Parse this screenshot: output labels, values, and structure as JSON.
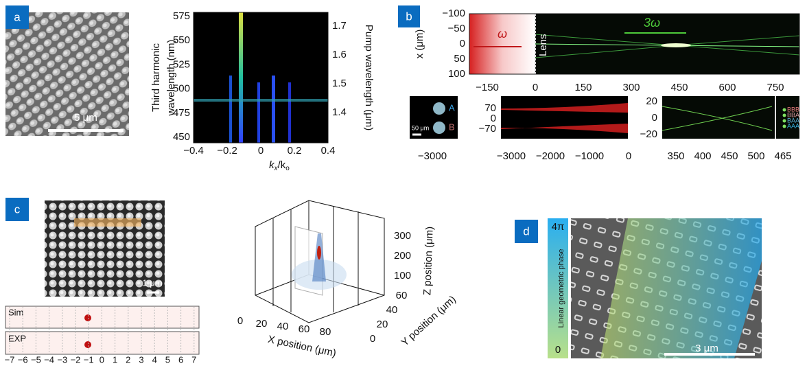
{
  "panel_a": {
    "label": "a",
    "scale_bar": "5 μm",
    "spectrum": {
      "y_label": [
        "Third harmonic",
        "wavelength (nm)"
      ],
      "y2_label": "Pump wavelength (μm)",
      "x_label": [
        "k",
        "x",
        "/k",
        "o"
      ],
      "yticks": [
        "575",
        "550",
        "525",
        "500",
        "475",
        "450"
      ],
      "y2ticks": [
        "1.7",
        "1.6",
        "1.5",
        "1.4"
      ],
      "xticks": [
        "−0.4",
        "−0.2",
        "0",
        "0.2",
        "0.4"
      ]
    }
  },
  "panel_b": {
    "label": "b",
    "y_label": "x (μm)",
    "omega": "ω",
    "third": "3ω",
    "lens": "Lens",
    "yticks": [
      "−100",
      "−50",
      "0",
      "50",
      "100"
    ],
    "xticks": [
      "−150",
      "0",
      "150",
      "300",
      "450",
      "600",
      "750"
    ],
    "inset_spots": {
      "spot_a": "A",
      "spot_b": "B",
      "scale_bar": "50 μm",
      "xticks": [
        "−3000"
      ]
    },
    "inset_beams": {
      "yticks": [
        "70",
        "0",
        "−70"
      ],
      "xticks": [
        "−3000",
        "−2000",
        "−1000",
        "0"
      ]
    },
    "inset_focus": {
      "yticks": [
        "20",
        "0",
        "−20"
      ],
      "xticks": [
        "350",
        "400",
        "450",
        "500",
        "465"
      ],
      "legend": [
        "BBB",
        "BBA",
        "BAA",
        "AAA"
      ]
    }
  },
  "panel_c": {
    "label": "c",
    "scale_bar": "1 μm",
    "sim": "Sim",
    "exp": "EXP",
    "xticks": [
      "−7",
      "−6",
      "−5",
      "−4",
      "−3",
      "−2",
      "−1",
      "0",
      "1",
      "2",
      "3",
      "4",
      "5",
      "6",
      "7"
    ],
    "plot3d": {
      "x_label": "X position (μm)",
      "y_label": "Y position (μm)",
      "z_label": "Z position (μm)",
      "xticks": [
        "0",
        "20",
        "40",
        "60",
        "80"
      ],
      "yticks": [
        "0",
        "20",
        "40",
        "60"
      ],
      "zticks": [
        "300",
        "200",
        "100"
      ]
    }
  },
  "panel_d": {
    "label": "d",
    "phase_max": "4π",
    "phase_min": "0",
    "bar_label": "Linear geometric phase",
    "scale_bar": "3 μm"
  }
}
